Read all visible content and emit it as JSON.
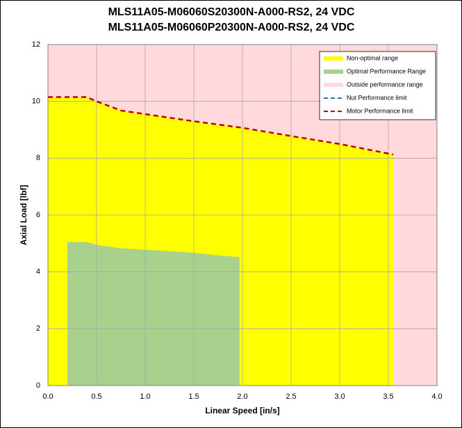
{
  "chart_data": {
    "type": "area",
    "title": [
      "MLS11A05-M06060S20300N-A000-RS2, 24 VDC",
      "MLS11A05-M06060P20300N-A000-RS2, 24 VDC"
    ],
    "x_label": "Linear Speed [in/s]",
    "y_label": "Axial Load [lbf]",
    "xlim": [
      0,
      4
    ],
    "ylim": [
      0,
      12
    ],
    "xticks": [
      {
        "value": 0,
        "label": "0.0"
      },
      {
        "value": 0.5,
        "label": "0.5"
      },
      {
        "value": 1,
        "label": "1.0"
      },
      {
        "value": 1.5,
        "label": "1.5"
      },
      {
        "value": 2,
        "label": "2.0"
      },
      {
        "value": 2.5,
        "label": "2.5"
      },
      {
        "value": 3,
        "label": "3.0"
      },
      {
        "value": 3.5,
        "label": "3.5"
      },
      {
        "value": 4,
        "label": "4.0"
      }
    ],
    "yticks": [
      0,
      2,
      4,
      6,
      8,
      10,
      12
    ],
    "grid": true,
    "legend": "top-right",
    "series": [
      {
        "name": "Non-optimal range",
        "kind": "area",
        "color": "#ffff00",
        "x": [
          0,
          0.4,
          0.5,
          0.75,
          1.0,
          1.5,
          2.0,
          2.5,
          3.0,
          3.55
        ],
        "values": [
          10.15,
          10.15,
          10.0,
          9.68,
          9.55,
          9.3,
          9.07,
          8.78,
          8.5,
          8.13
        ]
      },
      {
        "name": "Optimal Performance Range",
        "kind": "area",
        "color": "#a9d18e",
        "x": [
          0.2,
          0.4,
          0.5,
          0.75,
          1.0,
          1.25,
          1.5,
          1.75,
          1.97
        ],
        "values": [
          5.05,
          5.05,
          4.95,
          4.83,
          4.78,
          4.73,
          4.67,
          4.58,
          4.52
        ]
      },
      {
        "name": "Outside performance range",
        "kind": "background",
        "color": "#ffd9dc",
        "x": [],
        "values": []
      },
      {
        "name": "Nut Performance limit",
        "kind": "line",
        "color": "#2e75b6",
        "x": [],
        "values": []
      },
      {
        "name": "Motor Performance limit",
        "kind": "line",
        "color": "#c00000",
        "x": [
          0,
          0.4,
          0.5,
          0.75,
          1.0,
          1.5,
          2.0,
          2.5,
          3.0,
          3.55
        ],
        "values": [
          10.15,
          10.15,
          10.0,
          9.68,
          9.55,
          9.3,
          9.07,
          8.78,
          8.5,
          8.13
        ]
      }
    ]
  }
}
